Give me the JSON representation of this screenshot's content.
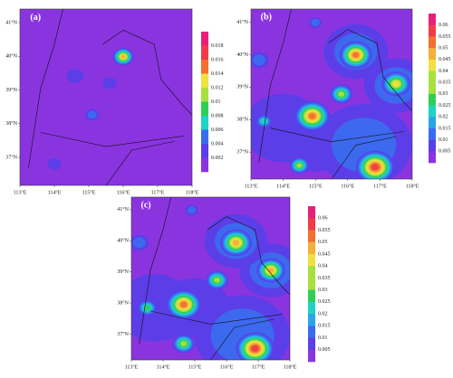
{
  "panels": [
    {
      "label": "(a)",
      "lon_ticks": [
        "113°E",
        "114°E",
        "115°E",
        "116°E",
        "117°E",
        "118°E"
      ],
      "lat_ticks": [
        "41°N",
        "40°N",
        "39°N",
        "38°N",
        "37°N"
      ],
      "colorbar_ticks": [
        "0.018",
        "0.016",
        "0.014",
        "0.012",
        "0.01",
        "0.008",
        "0.006",
        "0.004",
        "0.002"
      ]
    },
    {
      "label": "(b)",
      "lon_ticks": [
        "113°E",
        "114°E",
        "115°E",
        "116°E",
        "117°E",
        "118°E"
      ],
      "lat_ticks": [
        "41°N",
        "40°N",
        "39°N",
        "38°N",
        "37°N"
      ],
      "colorbar_ticks": [
        "0.06",
        "0.055",
        "0.05",
        "0.045",
        "0.04",
        "0.035",
        "0.03",
        "0.025",
        "0.02",
        "0.015",
        "0.01",
        "0.005"
      ]
    },
    {
      "label": "(c)",
      "lon_ticks": [
        "113°E",
        "114°E",
        "115°E",
        "116°E",
        "117°E",
        "118°E"
      ],
      "lat_ticks": [
        "41°N",
        "40°N",
        "39°N",
        "38°N",
        "37°N"
      ],
      "colorbar_ticks": [
        "0.06",
        "0.055",
        "0.05",
        "0.045",
        "0.04",
        "0.035",
        "0.03",
        "0.025",
        "0.02",
        "0.015",
        "0.01",
        "0.005"
      ]
    }
  ]
}
